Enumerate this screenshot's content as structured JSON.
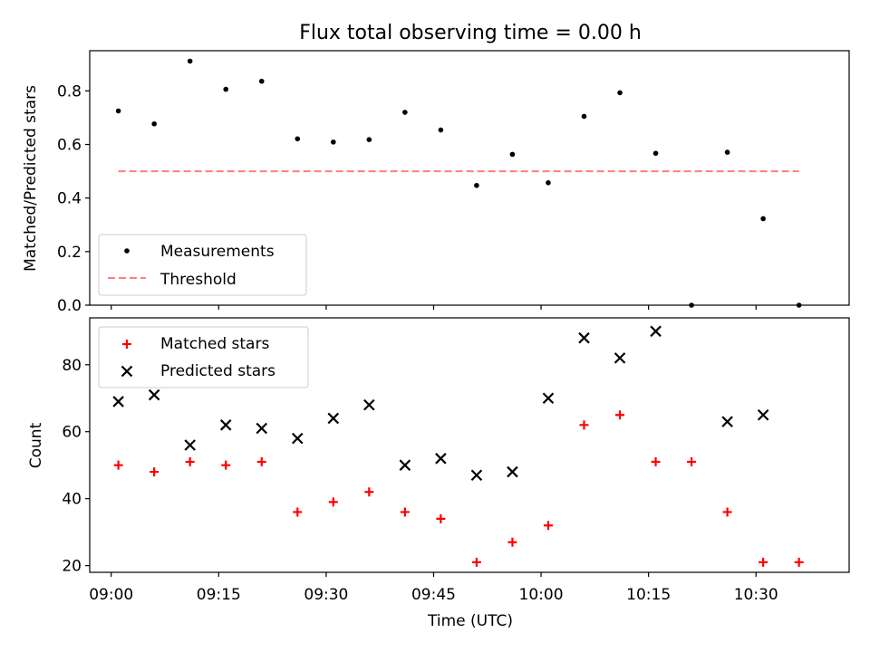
{
  "chart_data": [
    {
      "type": "scatter",
      "title": "Flux total observing time = 0.00 h",
      "xlabel": "",
      "ylabel": "Matched/Predicted stars",
      "ylim": [
        0,
        0.95
      ],
      "yticks": [
        "0.0",
        "0.2",
        "0.4",
        "0.6",
        "0.8"
      ],
      "xlim": [
        "08:57",
        "10:43"
      ],
      "x_tick_times": [
        "09:00",
        "09:15",
        "09:30",
        "09:45",
        "10:00",
        "10:15",
        "10:30"
      ],
      "legend_position": "lower-left",
      "series": [
        {
          "name": "Measurements",
          "marker": "dot",
          "color": "#000000",
          "x": [
            "09:01",
            "09:06",
            "09:11",
            "09:16",
            "09:21",
            "09:26",
            "09:31",
            "09:36",
            "09:41",
            "09:46",
            "09:51",
            "09:56",
            "10:01",
            "10:06",
            "10:11",
            "10:16",
            "10:21",
            "10:26",
            "10:31",
            "10:36"
          ],
          "y": [
            0.725,
            0.677,
            0.911,
            0.806,
            0.836,
            0.621,
            0.609,
            0.618,
            0.72,
            0.654,
            0.447,
            0.563,
            0.457,
            0.705,
            0.793,
            0.567,
            0.0,
            0.571,
            0.323,
            0.0
          ]
        },
        {
          "name": "Threshold",
          "marker": "dashed-line",
          "color": "#ff7f7f",
          "x": [
            "09:01",
            "10:36"
          ],
          "y": [
            0.5,
            0.5
          ]
        }
      ]
    },
    {
      "type": "scatter",
      "title": "",
      "xlabel": "Time (UTC)",
      "ylabel": "Count",
      "ylim": [
        18,
        94
      ],
      "yticks": [
        "20",
        "40",
        "60",
        "80"
      ],
      "xlim": [
        "08:57",
        "10:43"
      ],
      "x_tick_times": [
        "09:00",
        "09:15",
        "09:30",
        "09:45",
        "10:00",
        "10:15",
        "10:30"
      ],
      "legend_position": "upper-left",
      "series": [
        {
          "name": "Matched stars",
          "marker": "plus",
          "color": "#ff0000",
          "x": [
            "09:01",
            "09:06",
            "09:11",
            "09:16",
            "09:21",
            "09:26",
            "09:31",
            "09:36",
            "09:41",
            "09:46",
            "09:51",
            "09:56",
            "10:01",
            "10:06",
            "10:11",
            "10:16",
            "10:21",
            "10:26",
            "10:31",
            "10:36"
          ],
          "y": [
            50,
            48,
            51,
            50,
            51,
            36,
            39,
            42,
            36,
            34,
            21,
            27,
            32,
            62,
            65,
            51,
            51,
            36,
            21,
            21
          ]
        },
        {
          "name": "Predicted stars",
          "marker": "x",
          "color": "#000000",
          "x": [
            "09:01",
            "09:06",
            "09:11",
            "09:16",
            "09:21",
            "09:26",
            "09:31",
            "09:36",
            "09:41",
            "09:46",
            "09:51",
            "09:56",
            "10:01",
            "10:06",
            "10:11",
            "10:16",
            "10:26",
            "10:31"
          ],
          "y": [
            69,
            71,
            56,
            62,
            61,
            58,
            64,
            68,
            50,
            52,
            47,
            48,
            70,
            88,
            82,
            90,
            63,
            65
          ]
        }
      ]
    }
  ]
}
